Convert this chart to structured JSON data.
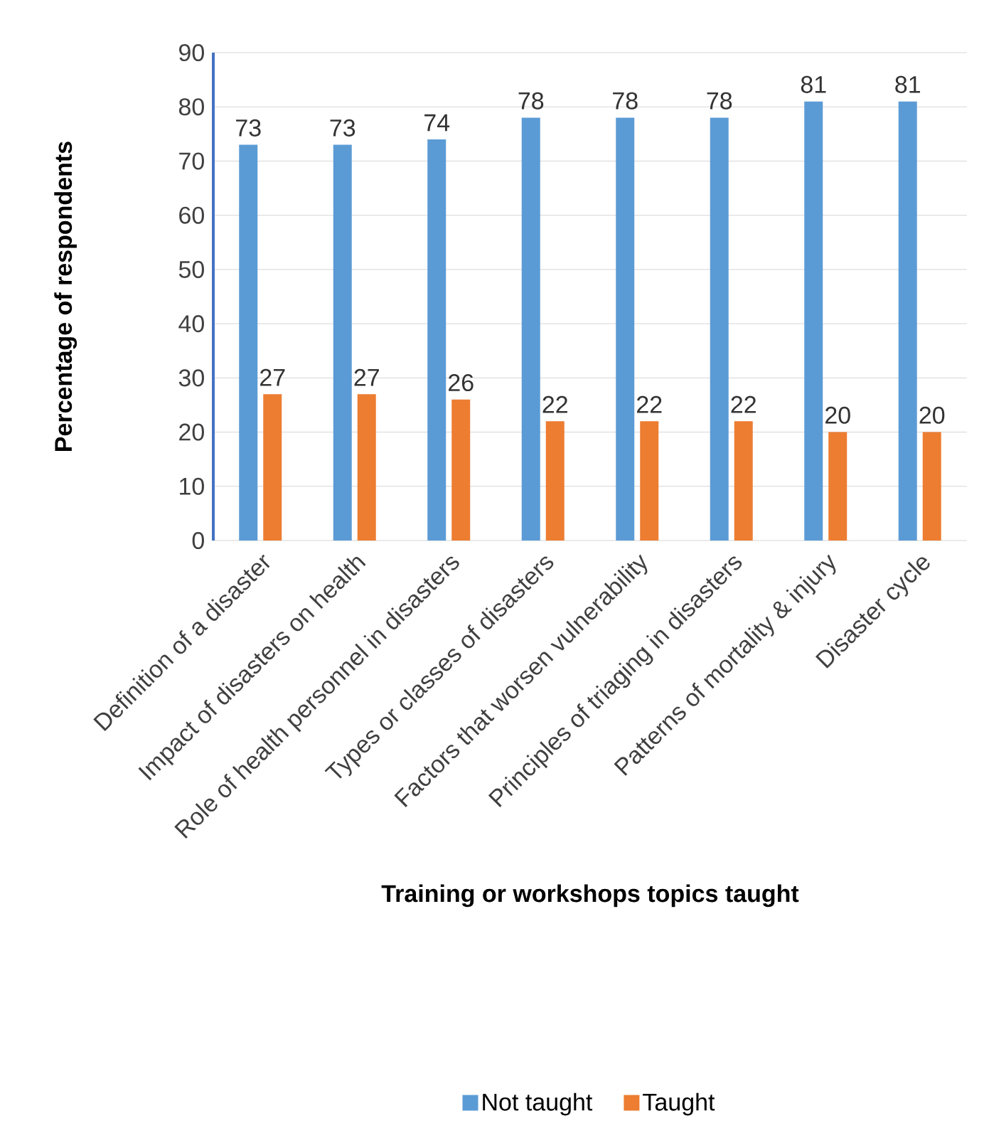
{
  "chart_data": {
    "type": "bar",
    "xlabel": "Training or workshops topics taught",
    "ylabel": "Percentage of respondents",
    "categories": [
      "Definition of a disaster",
      "Impact of disasters on health",
      "Role of health personnel in disasters",
      "Types or classes of disasters",
      "Factors that worsen vulnerability",
      "Principles of triaging in disasters",
      "Patterns of mortality & injury",
      "Disaster cycle"
    ],
    "series": [
      {
        "name": "Not taught",
        "color": "#5b9bd5",
        "values": [
          73,
          73,
          74,
          78,
          78,
          78,
          81,
          81
        ]
      },
      {
        "name": "Taught",
        "color": "#ed7d31",
        "values": [
          27,
          27,
          26,
          22,
          22,
          22,
          20,
          20
        ]
      }
    ],
    "ylim": [
      0,
      90
    ],
    "yticks": [
      0,
      10,
      20,
      30,
      40,
      50,
      60,
      70,
      80,
      90
    ],
    "grid": "y",
    "legend": "bottom",
    "data_labels": true
  }
}
